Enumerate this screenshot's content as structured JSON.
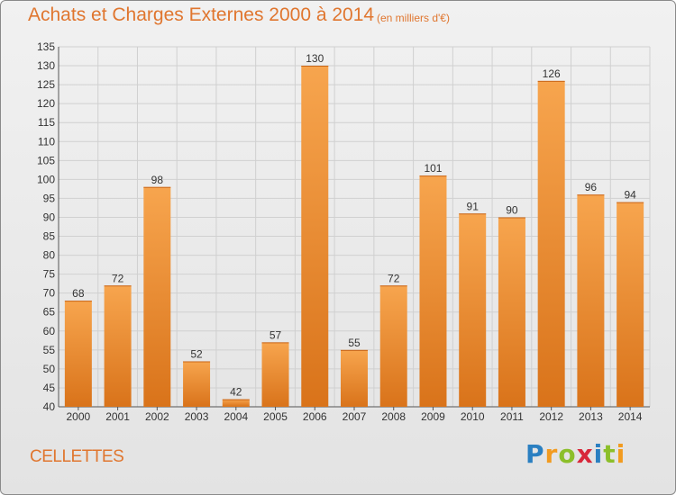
{
  "header": {
    "title": "Achats et Charges Externes 2000 à 2014",
    "subtitle": "(en milliers d'€)"
  },
  "footer": {
    "commune": "CELLETTES",
    "brand": {
      "letters": [
        "P",
        "r",
        "o",
        "x",
        "i",
        "t",
        "i"
      ],
      "colors": [
        "#2a7fc1",
        "#f29b1f",
        "#8cbf2a",
        "#d8283a",
        "#2a7fc1",
        "#8cbf2a",
        "#f29b1f"
      ]
    }
  },
  "colors": {
    "bar_top": "#f7a54e",
    "bar_bottom": "#d9731a",
    "grid": "#d0d0d0",
    "axis": "#555555",
    "text_accent": "#e0762f"
  },
  "chart_data": {
    "type": "bar",
    "categories": [
      "2000",
      "2001",
      "2002",
      "2003",
      "2004",
      "2005",
      "2006",
      "2007",
      "2008",
      "2009",
      "2010",
      "2011",
      "2012",
      "2013",
      "2014"
    ],
    "values": [
      68,
      72,
      98,
      52,
      42,
      57,
      130,
      55,
      72,
      101,
      91,
      90,
      126,
      96,
      94
    ],
    "value_labels": [
      "68",
      "72",
      "98",
      "52",
      "42",
      "57",
      "130",
      "55",
      "72",
      "101",
      "91",
      "90",
      "126",
      "96",
      "94"
    ],
    "ylim": [
      40,
      135
    ],
    "yticks": [
      "40",
      "45",
      "50",
      "55",
      "60",
      "65",
      "70",
      "75",
      "80",
      "85",
      "90",
      "95",
      "100",
      "105",
      "110",
      "115",
      "120",
      "125",
      "130",
      "135"
    ],
    "grid": true
  }
}
